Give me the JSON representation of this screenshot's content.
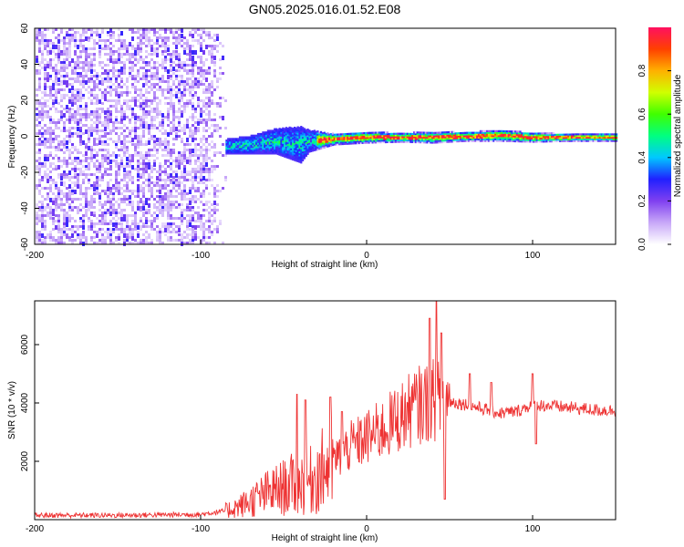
{
  "figure": {
    "title": "GN05.2025.016.01.52.E08"
  },
  "chart_data": [
    {
      "type": "heatmap",
      "title": "GN05.2025.016.01.52.E08",
      "xlabel": "Height of straight line (km)",
      "ylabel": "Frequency (Hz)",
      "xlim": [
        -200,
        150
      ],
      "ylim": [
        -60,
        60
      ],
      "x_ticks": [
        -200,
        -100,
        0,
        100
      ],
      "x_tick_labels": [
        "-200",
        "-100",
        "0",
        "100"
      ],
      "y_ticks": [
        -60,
        -40,
        -20,
        0,
        20,
        40,
        60
      ],
      "y_tick_labels": [
        "-60",
        "-40",
        "-20",
        "0",
        "20",
        "40",
        "60"
      ],
      "colorbar": {
        "label": "Normalized spectral amplitude",
        "range": [
          0,
          1
        ],
        "ticks": [
          0.0,
          0.2,
          0.4,
          0.6,
          0.8
        ],
        "tick_labels": [
          "0.0",
          "0.2",
          "0.4",
          "0.6",
          "0.8"
        ],
        "colormap": [
          "#ffffff",
          "#c8a8f8",
          "#8040f0",
          "#2020ff",
          "#00c8ff",
          "#00ff80",
          "#40ff00",
          "#d0ff00",
          "#ffb000",
          "#ff4000",
          "#ff1060"
        ]
      },
      "regions": [
        {
          "name": "noise",
          "x_range": [
            -200,
            -85
          ],
          "y_range": [
            -60,
            60
          ],
          "amplitude": "low (0.0-0.2)"
        },
        {
          "name": "signal-band",
          "x_range": [
            -85,
            150
          ],
          "center_hz": 0,
          "amplitude": "high (0.4-1.0)"
        }
      ],
      "signal_track": [
        {
          "x": -85,
          "f_center": -5,
          "half_width": 4
        },
        {
          "x": -70,
          "f_center": -4,
          "half_width": 5
        },
        {
          "x": -55,
          "f_center": -2,
          "half_width": 7
        },
        {
          "x": -40,
          "f_center": -4,
          "half_width": 10
        },
        {
          "x": -35,
          "f_center": -2,
          "half_width": 6
        },
        {
          "x": -20,
          "f_center": -1,
          "half_width": 3
        },
        {
          "x": 0,
          "f_center": 0,
          "half_width": 3
        },
        {
          "x": 20,
          "f_center": 0,
          "half_width": 2.5
        },
        {
          "x": 40,
          "f_center": 0,
          "half_width": 3
        },
        {
          "x": 60,
          "f_center": 0.5,
          "half_width": 2.5
        },
        {
          "x": 80,
          "f_center": 1,
          "half_width": 3
        },
        {
          "x": 100,
          "f_center": 0,
          "half_width": 2.5
        },
        {
          "x": 125,
          "f_center": 0,
          "half_width": 2
        },
        {
          "x": 150,
          "f_center": 0,
          "half_width": 2
        }
      ]
    },
    {
      "type": "line",
      "xlabel": "Height of straight line (km)",
      "ylabel": "SNR (10 * v/v)",
      "xlim": [
        -200,
        150
      ],
      "ylim": [
        0,
        7500
      ],
      "x_ticks": [
        -200,
        -100,
        0,
        100
      ],
      "x_tick_labels": [
        "-200",
        "-100",
        "0",
        "100"
      ],
      "y_ticks": [
        2000,
        4000,
        6000
      ],
      "y_tick_labels": [
        "2000",
        "4000",
        "6000"
      ],
      "series": [
        {
          "color": "#ee3333",
          "envelope": [
            {
              "x": -200,
              "y": 150
            },
            {
              "x": -150,
              "y": 150
            },
            {
              "x": -100,
              "y": 180
            },
            {
              "x": -85,
              "y": 300
            },
            {
              "x": -75,
              "y": 500
            },
            {
              "x": -60,
              "y": 900
            },
            {
              "x": -45,
              "y": 1200
            },
            {
              "x": -35,
              "y": 1300
            },
            {
              "x": -30,
              "y": 1500
            },
            {
              "x": -20,
              "y": 2000
            },
            {
              "x": -10,
              "y": 2500
            },
            {
              "x": 0,
              "y": 2800
            },
            {
              "x": 10,
              "y": 3100
            },
            {
              "x": 20,
              "y": 3500
            },
            {
              "x": 30,
              "y": 3900
            },
            {
              "x": 40,
              "y": 4100
            },
            {
              "x": 50,
              "y": 4050
            },
            {
              "x": 60,
              "y": 3950
            },
            {
              "x": 70,
              "y": 3800
            },
            {
              "x": 80,
              "y": 3650
            },
            {
              "x": 90,
              "y": 3700
            },
            {
              "x": 100,
              "y": 3950
            },
            {
              "x": 110,
              "y": 3900
            },
            {
              "x": 120,
              "y": 3850
            },
            {
              "x": 130,
              "y": 3800
            },
            {
              "x": 140,
              "y": 3750
            },
            {
              "x": 150,
              "y": 3750
            }
          ],
          "spikes": [
            {
              "x": -42,
              "y": 4300
            },
            {
              "x": -37,
              "y": 4100
            },
            {
              "x": -22,
              "y": 4200
            },
            {
              "x": -15,
              "y": 3700
            },
            {
              "x": 38,
              "y": 6900
            },
            {
              "x": 42,
              "y": 7500
            },
            {
              "x": 45,
              "y": 6400
            },
            {
              "x": 47,
              "y": 700
            },
            {
              "x": 62,
              "y": 5000
            },
            {
              "x": 75,
              "y": 4700
            },
            {
              "x": 100,
              "y": 5000
            },
            {
              "x": 102,
              "y": 2600
            }
          ]
        }
      ]
    }
  ]
}
